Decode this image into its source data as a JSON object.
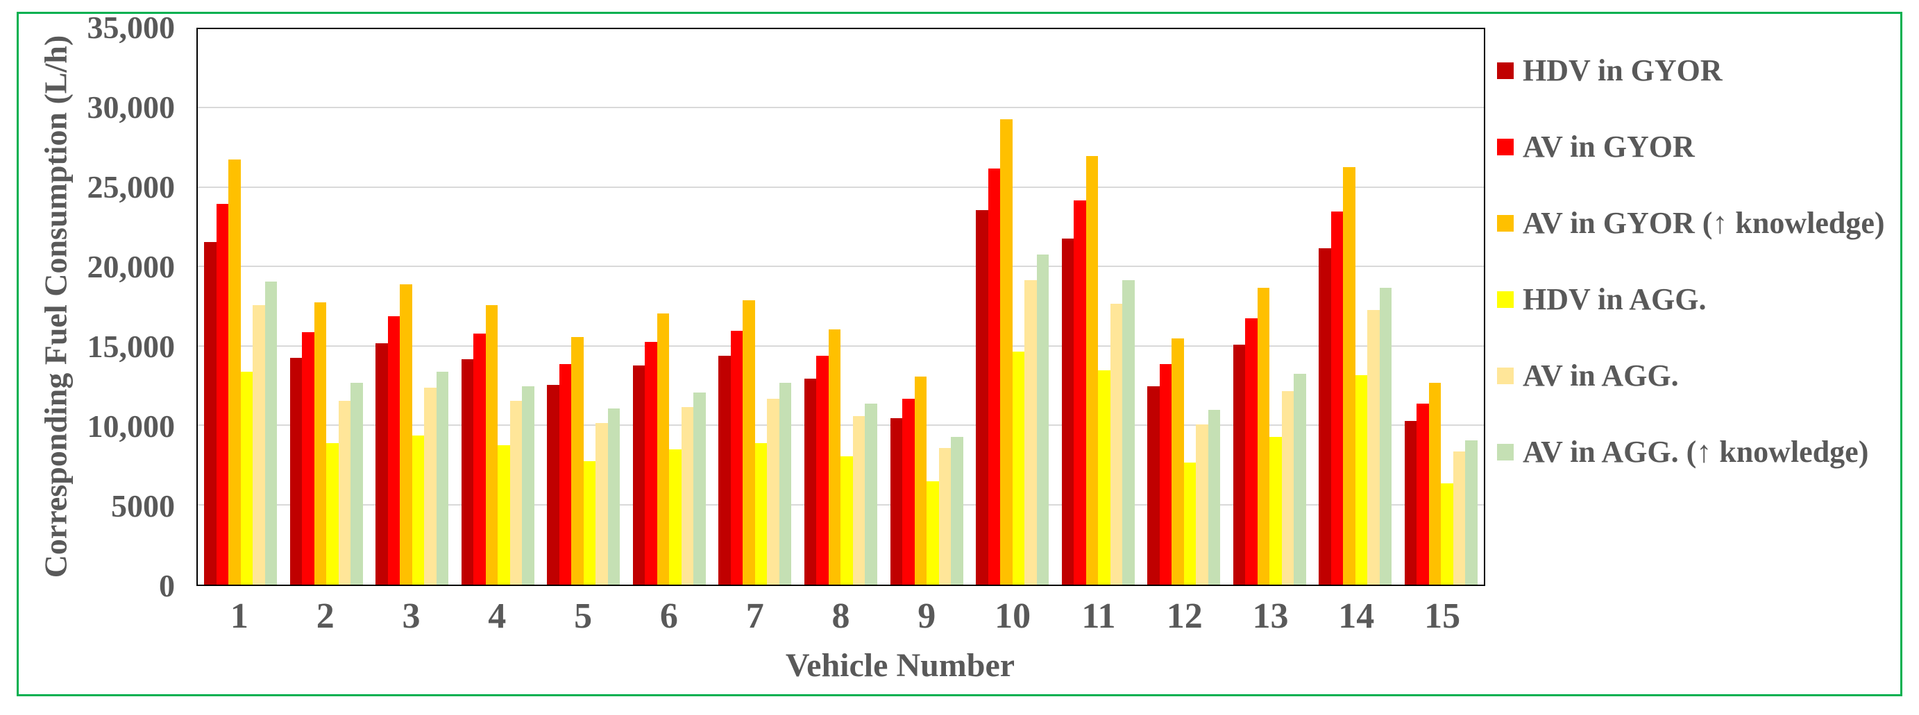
{
  "chart_data": {
    "type": "bar",
    "title": "",
    "xlabel": "Vehicle Number",
    "ylabel": "Corresponding Fuel Consumption (L/h)",
    "ylim": [
      0,
      35000
    ],
    "ytick_step": 5000,
    "ytick_labels": [
      "0",
      "5000",
      "10,000",
      "15,000",
      "20,000",
      "25,000",
      "30,000",
      "35,000"
    ],
    "grid": true,
    "legend_position": "right",
    "categories": [
      "1",
      "2",
      "3",
      "4",
      "5",
      "6",
      "7",
      "8",
      "9",
      "10",
      "11",
      "12",
      "13",
      "14",
      "15"
    ],
    "series": [
      {
        "name": "HDV in GYOR",
        "color": "#C00000",
        "values": [
          21600,
          14300,
          15200,
          14200,
          12600,
          13800,
          14400,
          13000,
          10500,
          23600,
          21800,
          12500,
          15100,
          21200,
          10300
        ]
      },
      {
        "name": "AV in GYOR",
        "color": "#FF0000",
        "values": [
          24000,
          15900,
          16900,
          15800,
          13900,
          15300,
          16000,
          14400,
          11700,
          26200,
          24200,
          13900,
          16800,
          23500,
          11400
        ]
      },
      {
        "name": "AV in GYOR (↑ knowledge)",
        "color": "#FFC000",
        "values": [
          26800,
          17800,
          18900,
          17600,
          15600,
          17100,
          17900,
          16100,
          13100,
          29300,
          27000,
          15500,
          18700,
          26300,
          12700
        ]
      },
      {
        "name": "HDV in AGG.",
        "color": "#FFFF00",
        "values": [
          13400,
          8900,
          9400,
          8800,
          7800,
          8500,
          8900,
          8100,
          6500,
          14700,
          13500,
          7700,
          9300,
          13200,
          6400
        ]
      },
      {
        "name": "AV in AGG.",
        "color": "#FFE699",
        "values": [
          17600,
          11600,
          12400,
          11600,
          10200,
          11200,
          11700,
          10600,
          8600,
          19200,
          17700,
          10100,
          12200,
          17300,
          8400
        ]
      },
      {
        "name": "AV in AGG. (↑ knowledge)",
        "color": "#C5E0B4",
        "values": [
          19100,
          12700,
          13400,
          12500,
          11100,
          12100,
          12700,
          11400,
          9300,
          20800,
          19200,
          11000,
          13300,
          18700,
          9100
        ]
      }
    ],
    "colors": {
      "text": "#595959",
      "gridline": "#D9D9D9",
      "plot_border": "#000000",
      "frame_border": "#00B050"
    }
  }
}
